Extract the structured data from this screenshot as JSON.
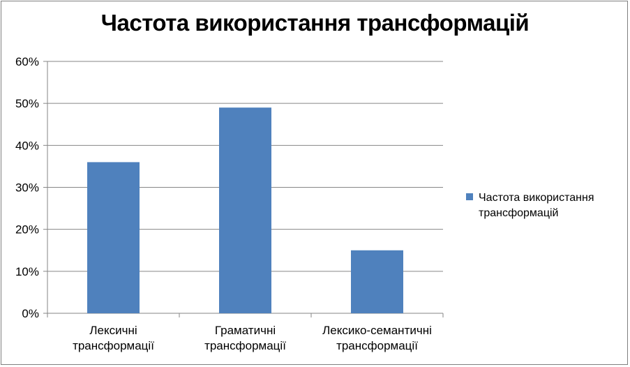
{
  "chart_data": {
    "type": "bar",
    "title": "Частота використання трансформацій",
    "categories": [
      [
        "Лексичні",
        "трансформації"
      ],
      [
        "Граматичні",
        "трансформації"
      ],
      [
        "Лексико-семантичні",
        "трансформації"
      ]
    ],
    "series": [
      {
        "name": "Частота використання трансформацій",
        "values": [
          36,
          49,
          15
        ],
        "color": "#4f81bd"
      }
    ],
    "ylim": [
      0,
      60
    ],
    "yticks": [
      0,
      10,
      20,
      30,
      40,
      50,
      60
    ],
    "ytick_format": "percent",
    "grid": true,
    "legend": {
      "position": "right",
      "lines": [
        "Частота використання",
        "трансформацій"
      ]
    },
    "xlabel": "",
    "ylabel": ""
  }
}
